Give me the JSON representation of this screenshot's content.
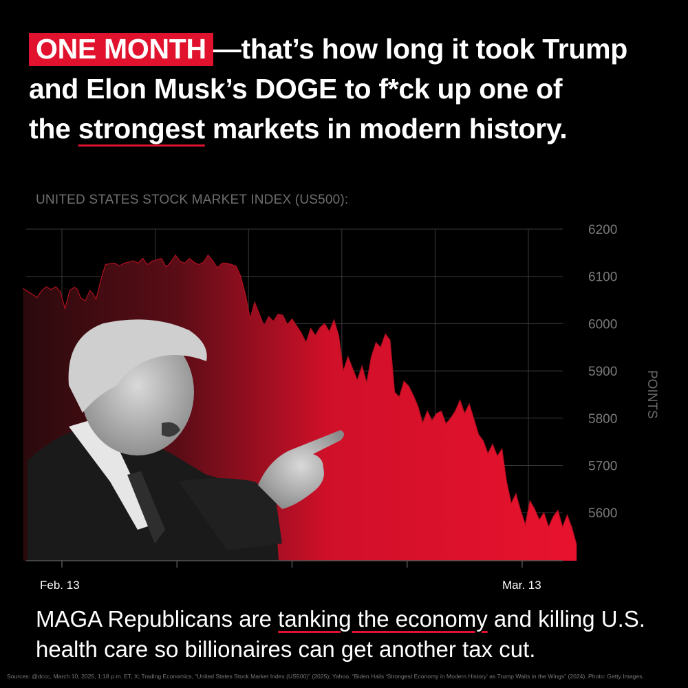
{
  "headline": {
    "highlight": "ONE MONTH",
    "line1_rest": "—that’s how long it took Trump",
    "line2": "and Elon Musk’s DOGE to f*ck up one of",
    "line3_pre": "the ",
    "line3_underlined": "strongest",
    "line3_post": " markets in modern history."
  },
  "colors": {
    "accent": "#e0122d",
    "background": "#000000",
    "muted": "#6f6f6f"
  },
  "chart_data": {
    "type": "area",
    "title": "UNITED STATES STOCK MARKET INDEX (US500):",
    "ylabel": "POINTS",
    "xlabel": "",
    "ylim": [
      5500,
      6200
    ],
    "yticks": [
      "6200",
      "6100",
      "6000",
      "5900",
      "5800",
      "5700",
      "5600"
    ],
    "x_tick_labels": [
      "Feb. 13",
      "Mar. 13"
    ],
    "series": [
      {
        "x": [
          -2.5,
          -2.2,
          -1.9,
          -1.6,
          -1.3,
          -1.0,
          -0.7,
          -0.4,
          -0.1,
          0.2,
          0.5,
          0.8,
          1.0,
          1.2,
          1.5,
          1.8,
          2.0,
          2.2,
          2.5,
          2.8,
          3.1,
          3.4,
          3.7,
          4.0,
          4.3,
          4.6,
          4.9,
          5.2,
          5.5,
          5.8,
          6.1,
          6.4,
          6.7,
          7.0,
          7.3,
          7.6,
          7.9,
          8.2,
          8.5,
          8.8,
          9.1,
          9.4,
          9.7,
          10.0,
          10.3,
          10.6,
          10.9,
          11.2,
          11.5,
          11.8,
          12.1,
          12.4,
          12.7,
          13.0,
          13.3,
          13.6,
          13.9,
          14.2,
          14.5,
          14.8,
          15.1,
          15.4,
          15.7,
          16.0,
          16.3,
          16.6,
          16.9,
          17.2,
          17.5,
          17.8,
          18.1,
          18.4,
          18.7,
          19.0,
          19.3,
          19.6,
          19.9,
          20.2,
          20.5,
          20.8,
          21.1,
          21.4,
          21.7,
          22.0,
          22.3,
          22.6,
          22.9,
          23.2,
          23.5,
          23.8,
          24.1,
          24.4,
          24.7,
          25.0,
          25.3,
          25.6,
          25.9,
          26.2,
          26.5,
          26.8,
          27.1,
          27.4,
          27.7,
          28.0,
          28.3,
          28.6,
          28.9,
          29.2,
          29.5,
          29.8,
          30.1,
          30.4,
          30.7,
          31.0,
          31.3,
          31.6,
          31.9,
          32.2,
          32.5,
          32.8,
          33.1
        ],
        "values": [
          6075,
          6068,
          6062,
          6055,
          6070,
          6078,
          6072,
          6078,
          6068,
          6032,
          6070,
          6077,
          6072,
          6055,
          6048,
          6070,
          6063,
          6052,
          6092,
          6125,
          6127,
          6128,
          6122,
          6128,
          6130,
          6133,
          6128,
          6138,
          6125,
          6132,
          6135,
          6138,
          6120,
          6130,
          6145,
          6132,
          6128,
          6138,
          6130,
          6125,
          6130,
          6145,
          6133,
          6118,
          6128,
          6128,
          6125,
          6122,
          6100,
          6062,
          6010,
          6045,
          6020,
          5995,
          6015,
          6005,
          6020,
          6018,
          5998,
          6010,
          5995,
          5980,
          5960,
          5990,
          5975,
          5992,
          6000,
          5983,
          6008,
          5975,
          5900,
          5930,
          5905,
          5880,
          5910,
          5875,
          5930,
          5960,
          5950,
          5978,
          5965,
          5855,
          5845,
          5878,
          5868,
          5848,
          5825,
          5790,
          5815,
          5795,
          5810,
          5815,
          5788,
          5800,
          5815,
          5838,
          5810,
          5830,
          5798,
          5765,
          5752,
          5725,
          5745,
          5720,
          5735,
          5665,
          5620,
          5640,
          5605,
          5575,
          5625,
          5608,
          5585,
          5600,
          5570,
          5592,
          5605,
          5570,
          5595,
          5568,
          5532
        ]
      }
    ]
  },
  "bottom": {
    "pre": "MAGA Republicans are ",
    "underlined": "tanking the economy",
    "post": " and killing U.S. health care so billionaires can get another tax cut."
  },
  "sources": "Sources: @dccc, March 10, 2025, 1:18 p.m. ET, X; Trading Economics, “United States Stock Market Index (US500)” (2025); Yahoo, “Biden Hails ‘Strongest Economy in Modern History’ as Trump Waits in the Wings” (2024). Photo: Getty Images."
}
